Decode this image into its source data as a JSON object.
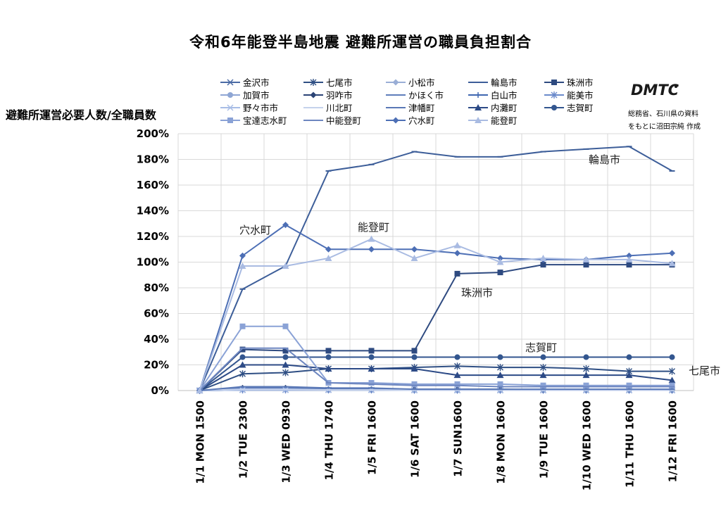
{
  "title": "令和6年能登半島地震 避難所運営の職員負担割合",
  "logo_text": "DMTC",
  "source_lines": [
    "総務省、石川県の資料",
    "をもとに沼田宗純 作成"
  ],
  "chart_data": {
    "type": "line",
    "title": "令和6年能登半島地震 避難所運営の職員負担割合",
    "xlabel": "",
    "ylabel": "避難所運営必要人数/全職員数",
    "ylim": [
      0,
      200
    ],
    "yticks": [
      0,
      20,
      40,
      60,
      80,
      100,
      120,
      140,
      160,
      180,
      200
    ],
    "ytick_suffix": "%",
    "grid": true,
    "legend_position": "top",
    "categories": [
      "1/1 MON 1500",
      "1/2 TUE 2300",
      "1/3 WED 0930",
      "1/4 THU 1740",
      "1/5 FRI 1600",
      "1/6 SAT 1600",
      "1/7 SUN1600",
      "1/8 MON 1600",
      "1/9 TUE 1600",
      "1/10 WED 1600",
      "1/11 THU 1600",
      "1/12 FRI 1600"
    ],
    "series": [
      {
        "name": "金沢市",
        "color": "#4a6aa5",
        "marker": "x",
        "values": [
          0,
          0.5,
          0.5,
          0.5,
          0.5,
          0.4,
          0.3,
          0.3,
          0.3,
          0.3,
          0.3,
          0.3
        ]
      },
      {
        "name": "七尾市",
        "color": "#2f4f84",
        "marker": "star",
        "values": [
          0,
          13,
          14,
          17,
          17,
          18,
          19,
          18,
          18,
          17,
          15,
          15
        ]
      },
      {
        "name": "小松市",
        "color": "#9aaed6",
        "marker": "diamond",
        "values": [
          0,
          1,
          1,
          0.5,
          0.5,
          0.4,
          0.3,
          0.3,
          0.3,
          0.3,
          0.3,
          0.3
        ]
      },
      {
        "name": "輪島市",
        "color": "#3d5e99",
        "marker": "dash",
        "values": [
          0,
          79,
          97,
          171,
          176,
          186,
          182,
          182,
          186,
          188,
          190,
          171
        ]
      },
      {
        "name": "珠洲市",
        "color": "#2e4a80",
        "marker": "square",
        "values": [
          0,
          32,
          31,
          31,
          31,
          31,
          91,
          92,
          98,
          98,
          98,
          98
        ]
      },
      {
        "name": "加賀市",
        "color": "#8ea6d4",
        "marker": "circle",
        "values": [
          0,
          1,
          1,
          0.5,
          0.5,
          0.4,
          0.3,
          0.3,
          0.3,
          0.3,
          0.3,
          0.3
        ]
      },
      {
        "name": "羽咋市",
        "color": "#2a4375",
        "marker": "diamond",
        "values": [
          0,
          2,
          2,
          1,
          1,
          1,
          1,
          1,
          0.5,
          0.5,
          0.5,
          0.5
        ]
      },
      {
        "name": "かほく市",
        "color": "#5f7dbb",
        "marker": "dash",
        "values": [
          0,
          2,
          2,
          1,
          1,
          1,
          1,
          0.5,
          0.5,
          0.5,
          0.5,
          0.5
        ]
      },
      {
        "name": "白山市",
        "color": "#3f66b0",
        "marker": "plus",
        "values": [
          0,
          0.5,
          0.5,
          0.5,
          0.5,
          0.3,
          0.3,
          0.3,
          0.3,
          0.3,
          0.3,
          0.3
        ]
      },
      {
        "name": "能美市",
        "color": "#6b8acb",
        "marker": "star",
        "values": [
          0,
          0.5,
          0.5,
          0.5,
          0.5,
          0.3,
          0.3,
          0.3,
          0.3,
          0.3,
          0.3,
          0.3
        ]
      },
      {
        "name": "野々市市",
        "color": "#a8bde6",
        "marker": "x",
        "values": [
          0,
          0.5,
          0.5,
          0.5,
          0.5,
          0.3,
          0.3,
          0.3,
          0.3,
          0.3,
          0.3,
          0.3
        ]
      },
      {
        "name": "川北町",
        "color": "#c5d2ec",
        "marker": "dash",
        "values": [
          0,
          1,
          1,
          0.5,
          0.5,
          0.3,
          0.3,
          0.3,
          0.3,
          0.3,
          0.3,
          0.3
        ]
      },
      {
        "name": "津幡町",
        "color": "#5a78b6",
        "marker": "dash",
        "values": [
          0,
          3,
          3,
          2,
          2,
          1,
          1,
          1,
          1,
          1,
          1,
          1
        ]
      },
      {
        "name": "内灘町",
        "color": "#2c4a86",
        "marker": "triangle",
        "values": [
          0,
          20,
          20,
          17,
          17,
          17,
          12,
          12,
          12,
          12,
          12,
          8
        ]
      },
      {
        "name": "志賀町",
        "color": "#33568f",
        "marker": "circle",
        "values": [
          0,
          26,
          26,
          26,
          26,
          26,
          26,
          26,
          26,
          26,
          26,
          26
        ]
      },
      {
        "name": "宝達志水町",
        "color": "#8aa2d6",
        "marker": "square",
        "values": [
          0,
          50,
          50,
          6,
          6,
          5,
          5,
          5,
          4,
          4,
          4,
          4
        ]
      },
      {
        "name": "中能登町",
        "color": "#6d86c0",
        "marker": "dash",
        "values": [
          0,
          33,
          33,
          6,
          5,
          4,
          4,
          3,
          3,
          3,
          3,
          3
        ]
      },
      {
        "name": "穴水町",
        "color": "#4d6fb5",
        "marker": "diamond",
        "values": [
          0,
          105,
          129,
          110,
          110,
          110,
          107,
          103,
          102,
          102,
          105,
          107
        ]
      },
      {
        "name": "能登町",
        "color": "#a9bbe2",
        "marker": "triangle",
        "values": [
          0,
          97,
          97,
          103,
          118,
          103,
          113,
          100,
          103,
          102,
          102,
          99
        ]
      }
    ],
    "annotations": [
      "輪島市",
      "穴水町",
      "能登町",
      "珠洲市",
      "志賀町",
      "七尾市"
    ]
  }
}
